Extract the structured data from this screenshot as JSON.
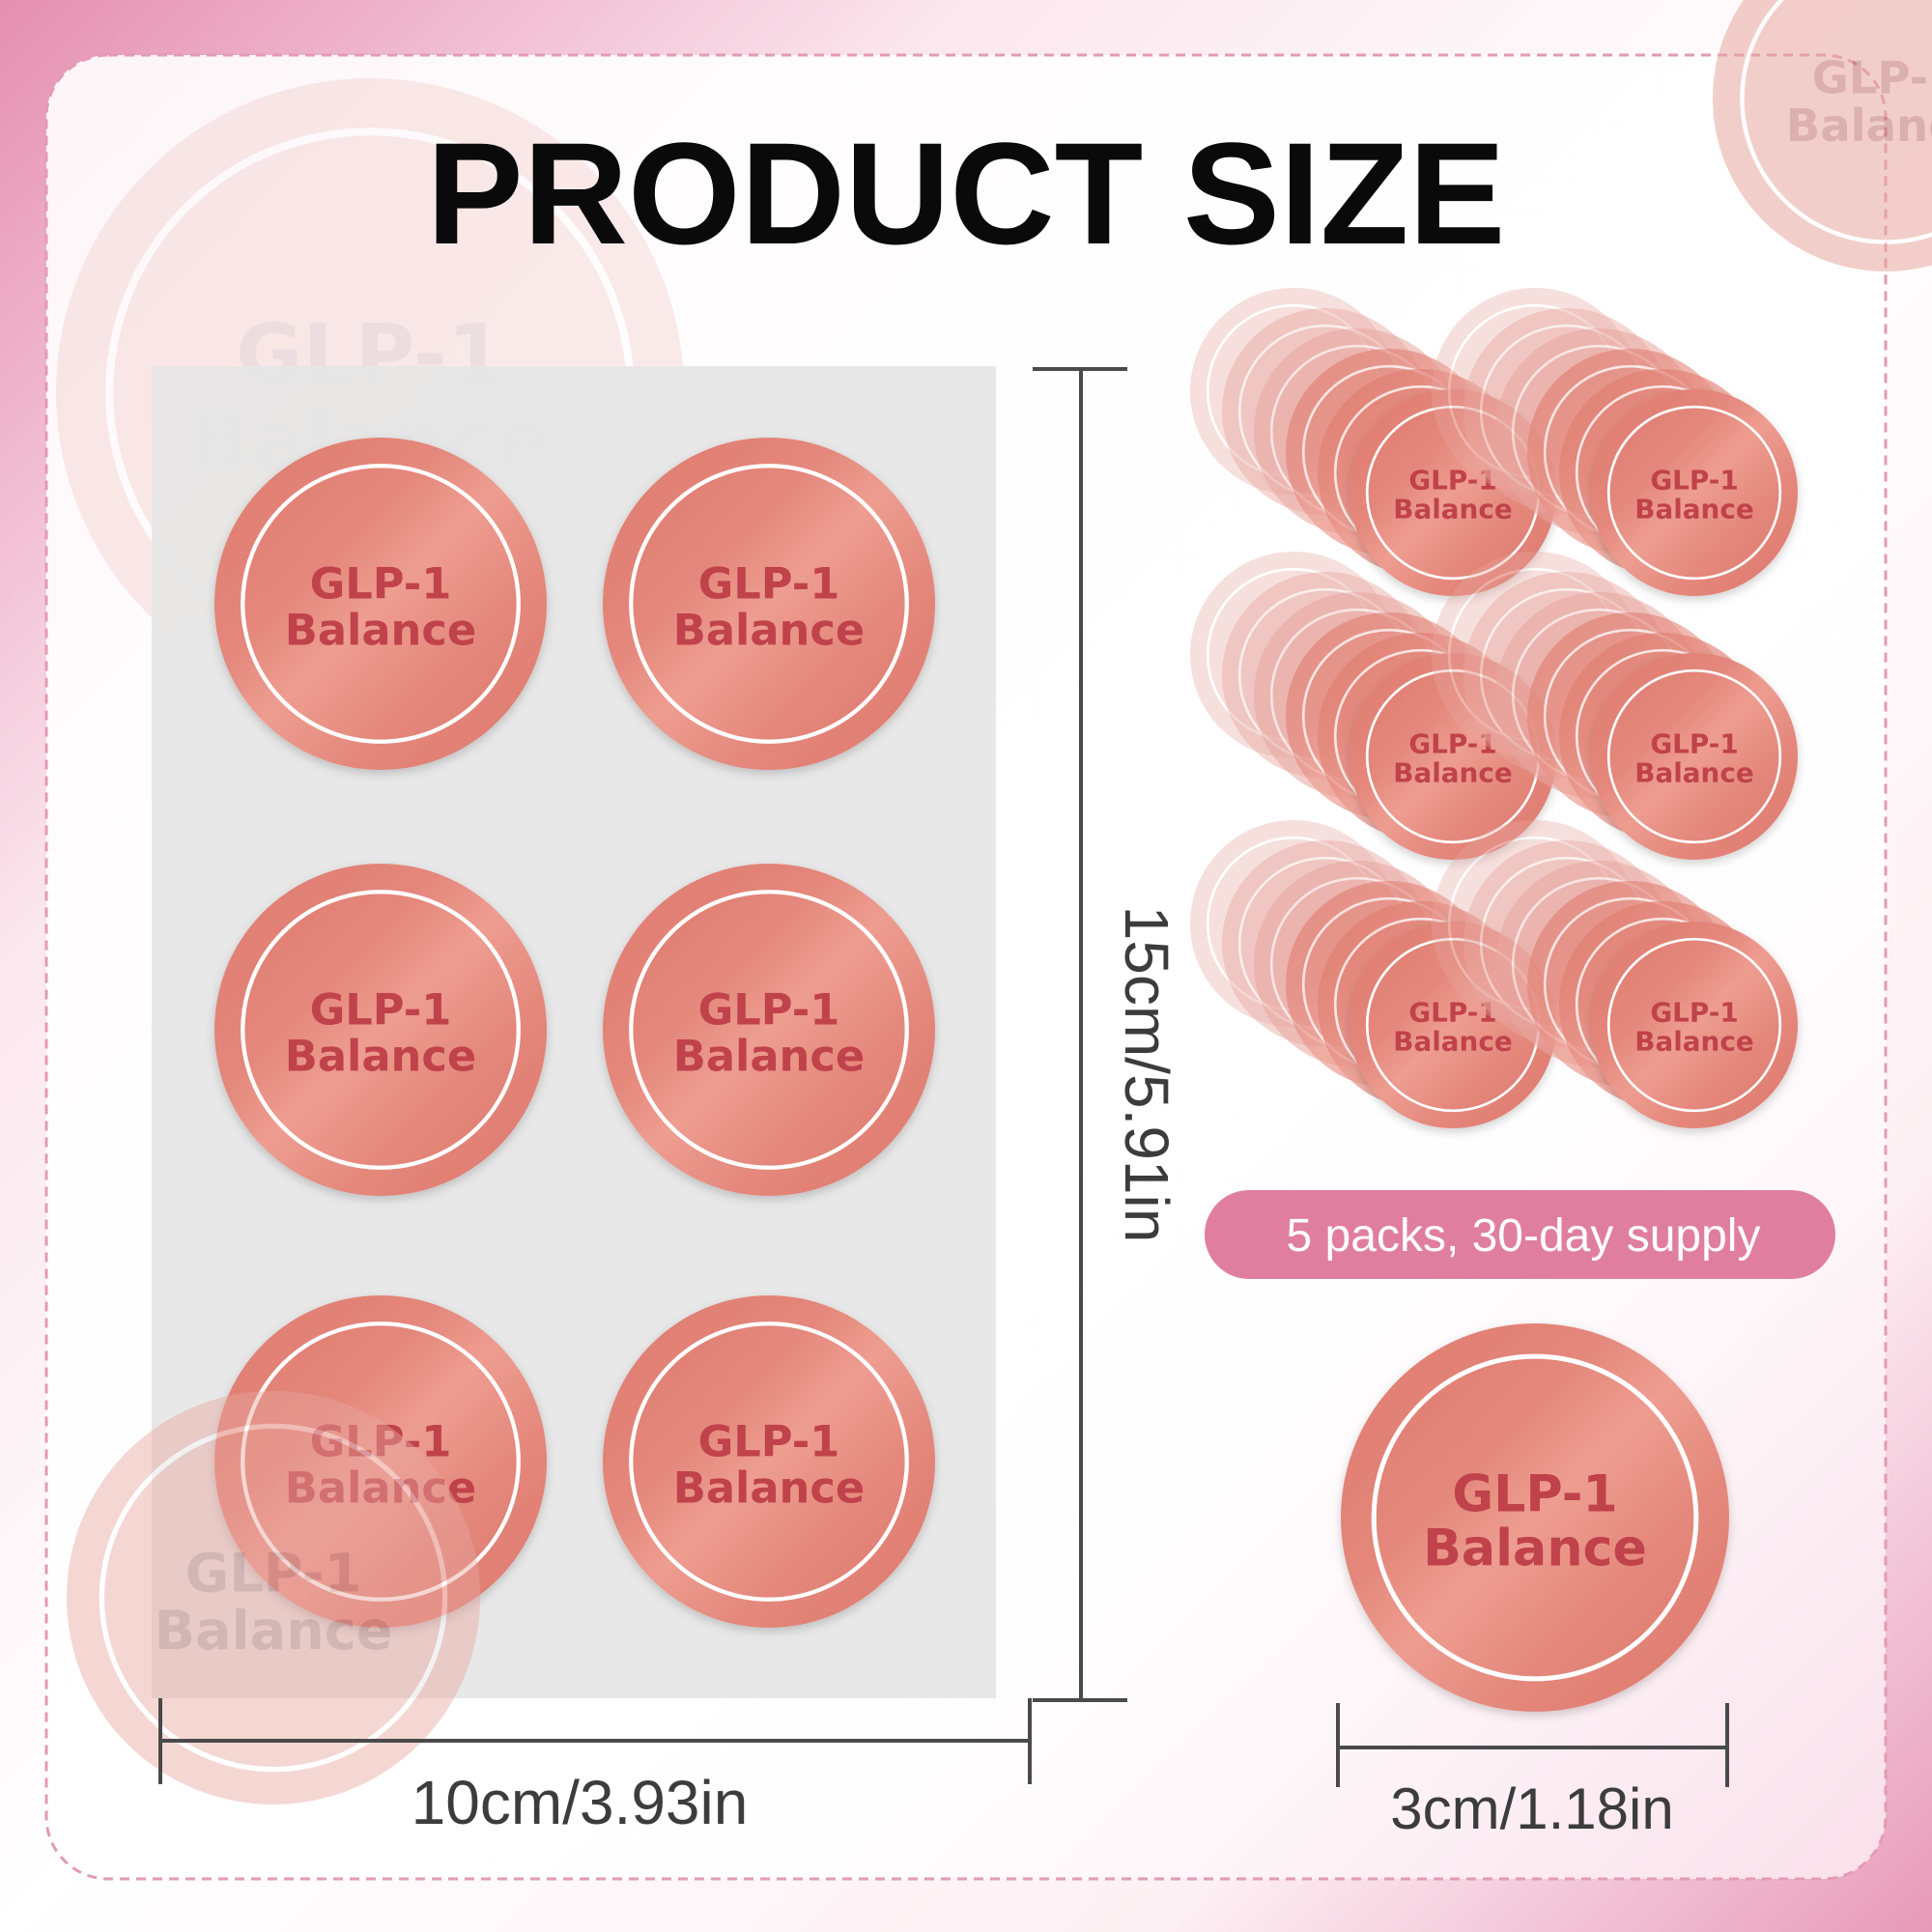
{
  "title": "PRODUCT SIZE",
  "sticker": {
    "line1": "GLP-1",
    "line2": "Balance"
  },
  "sheet_height_label": "15cm/5.91in",
  "sheet_width_label": "10cm/3.93in",
  "pack_badge": "5 packs, 30-day supply",
  "sticker_diameter_label": "3cm/1.18in",
  "colors": {
    "sticker_dark": "#df7a6e",
    "sticker_light": "#ee9d91",
    "sticker_text": "#c0424a",
    "badge": "#e07ea0",
    "accent_pink": "#e58fb0",
    "dimension_line": "#4a4a4a"
  }
}
